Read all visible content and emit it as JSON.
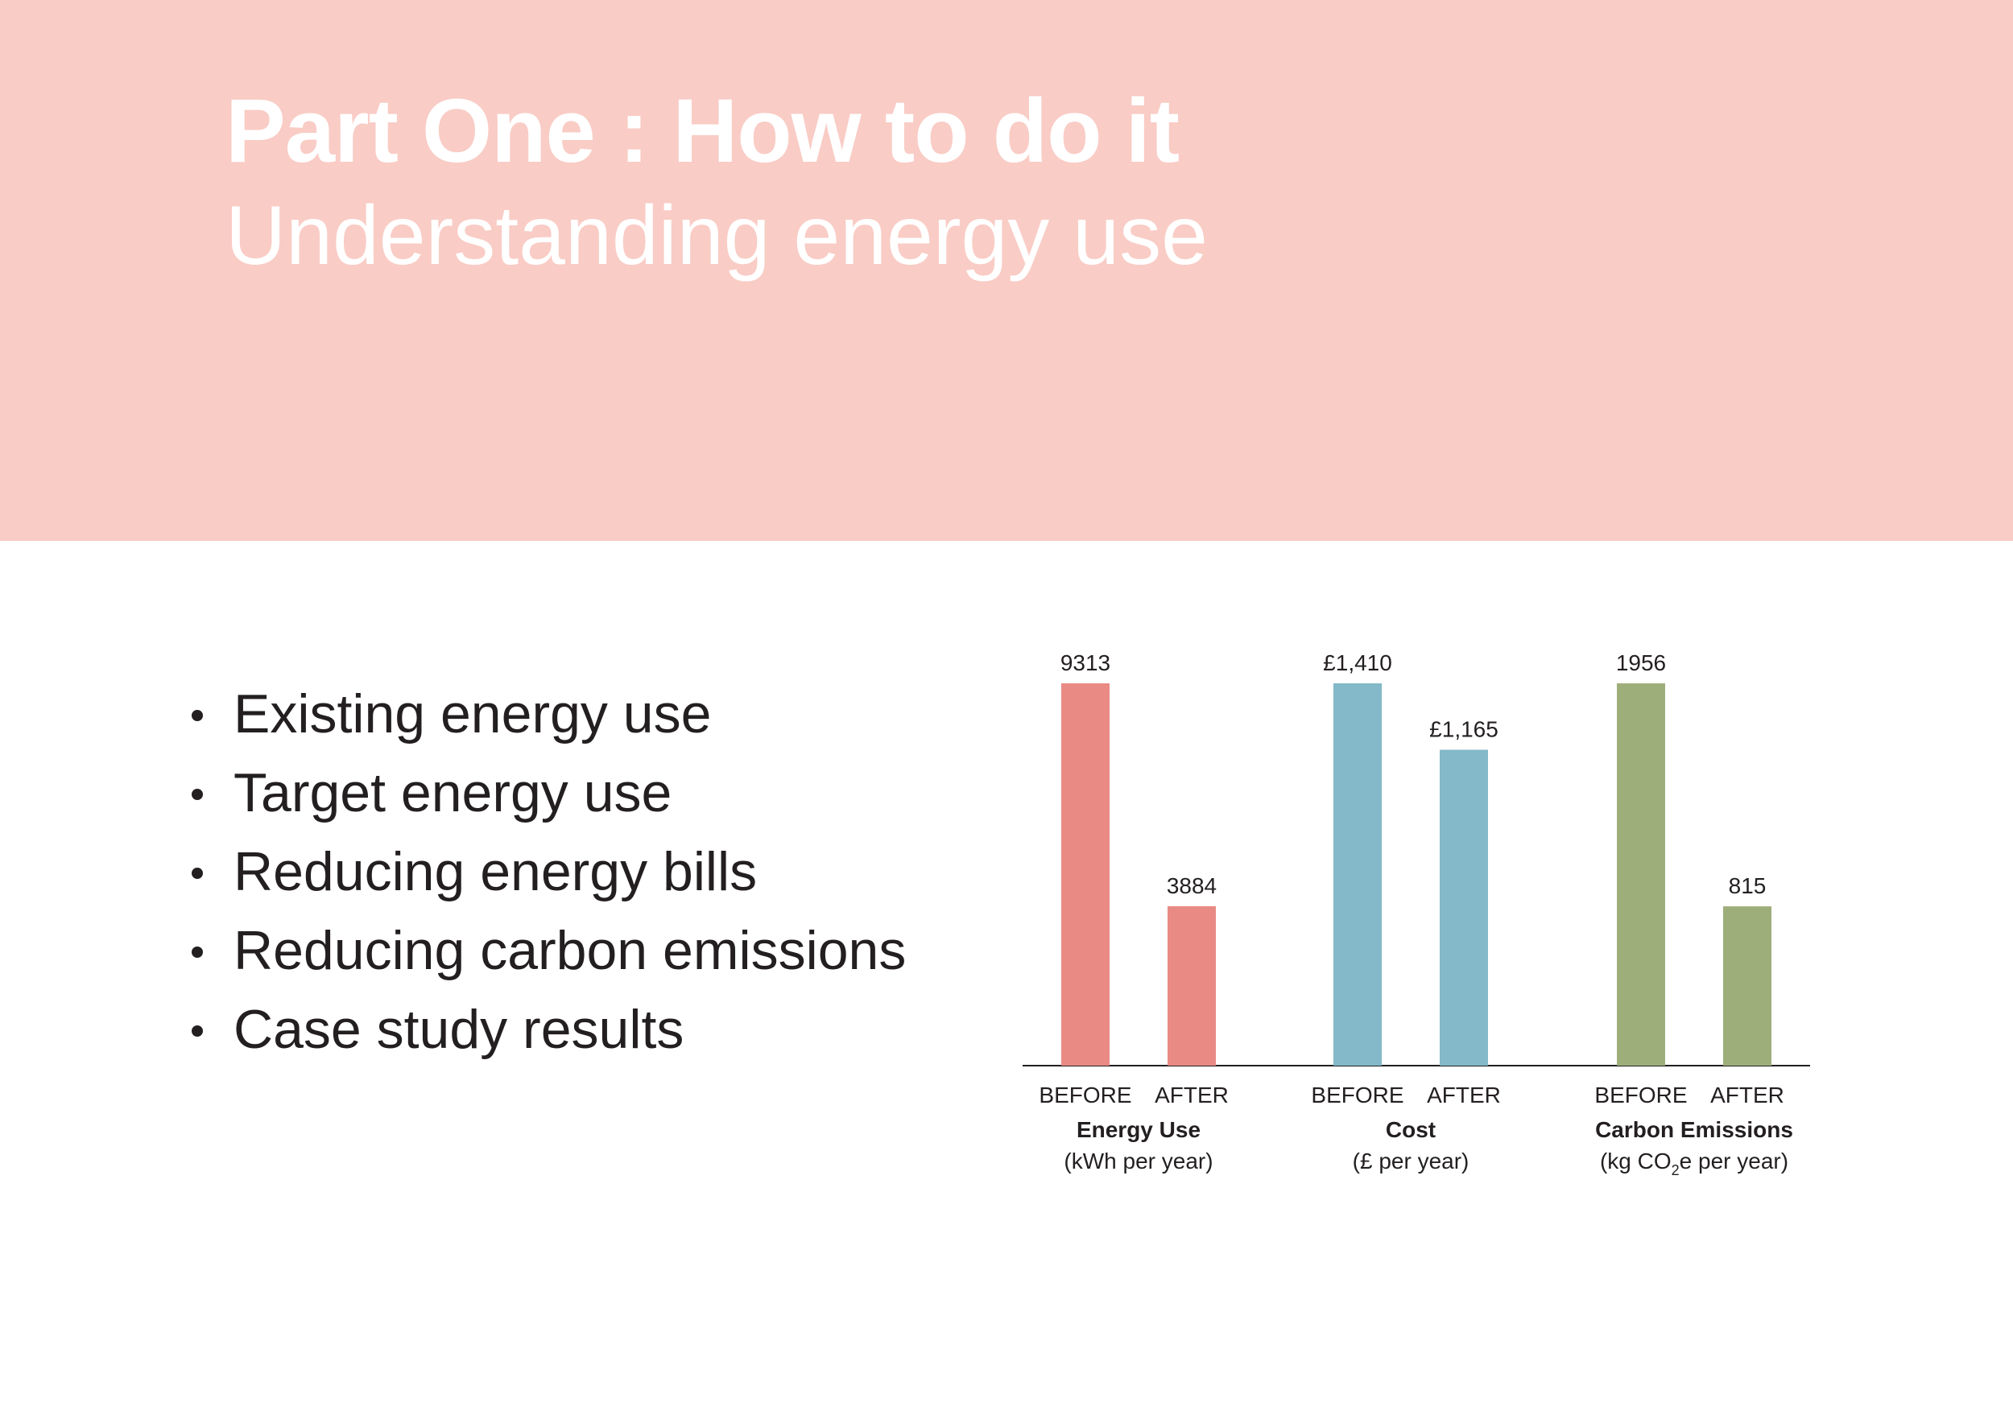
{
  "header": {
    "title": "Part One : How to do it",
    "subtitle": "Understanding energy use",
    "background": "#f9ccc5"
  },
  "bullets": [
    "Existing energy use",
    "Target energy use",
    "Reducing energy bills",
    "Reducing carbon emissions",
    "Case study results"
  ],
  "chart_data": {
    "type": "bar",
    "groups": [
      {
        "name": "Energy Use",
        "unit_prefix": "(kWh per year)",
        "unit_sub": "",
        "unit_suffix": "",
        "color": "#e98a84",
        "bars": [
          {
            "category": "BEFORE",
            "value": 9313,
            "label": "9313"
          },
          {
            "category": "AFTER",
            "value": 3884,
            "label": "3884"
          }
        ]
      },
      {
        "name": "Cost",
        "unit_prefix": "(£ per year)",
        "unit_sub": "",
        "unit_suffix": "",
        "color": "#83b9c8",
        "bars": [
          {
            "category": "BEFORE",
            "value": 1410,
            "label": "£1,410"
          },
          {
            "category": "AFTER",
            "value": 1165,
            "label": "£1,165"
          }
        ]
      },
      {
        "name": "Carbon Emissions",
        "unit_prefix": "(kg CO",
        "unit_sub": "2",
        "unit_suffix": "e per year)",
        "color": "#9eae7b",
        "bars": [
          {
            "category": "BEFORE",
            "value": 1956,
            "label": "1956"
          },
          {
            "category": "AFTER",
            "value": 815,
            "label": "815"
          }
        ]
      }
    ],
    "grid": false,
    "legend": "none"
  }
}
